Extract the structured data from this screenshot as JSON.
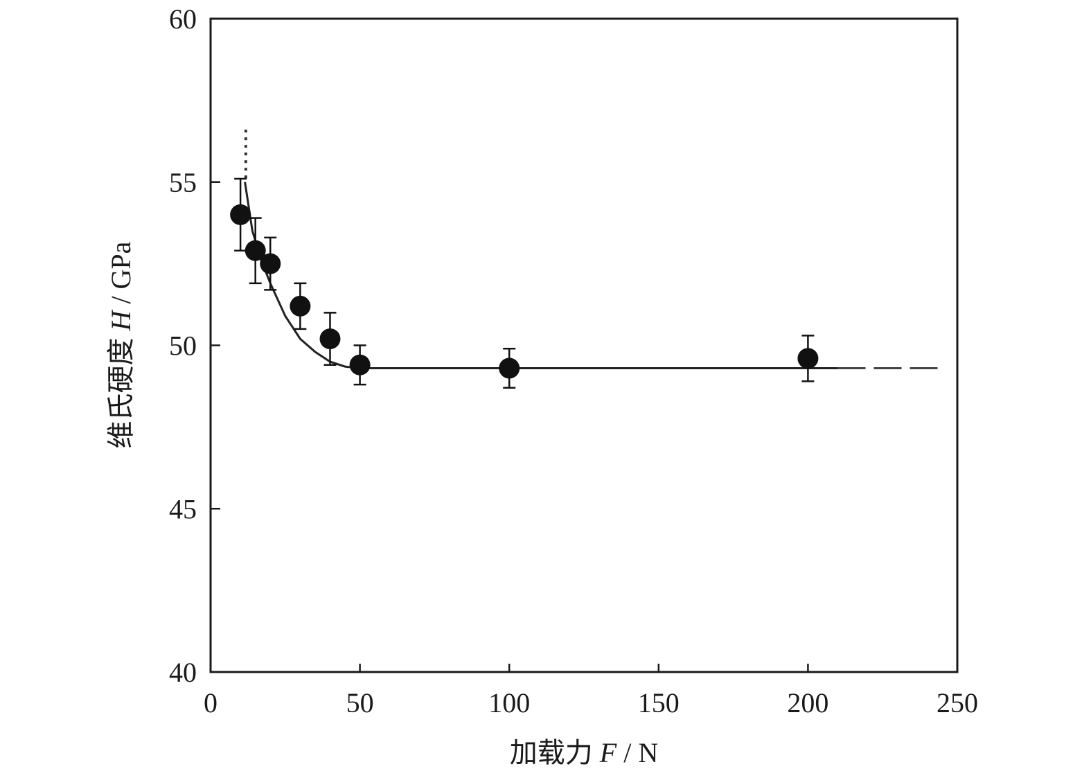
{
  "chart_data": {
    "type": "scatter",
    "title": "",
    "xlabel": {
      "prefix": "加载力 ",
      "symbol": "F",
      "unit": " / N"
    },
    "ylabel": {
      "prefix": "维氏硬度 ",
      "symbol": "H",
      "unit": " / GPa"
    },
    "xlim": [
      0,
      250
    ],
    "ylim": [
      40,
      60
    ],
    "xticks": [
      0,
      50,
      100,
      150,
      200,
      250
    ],
    "yticks": [
      40,
      45,
      50,
      55,
      60
    ],
    "grid": false,
    "legend": "none",
    "series": [
      {
        "style": "filled-circle-with-error-bars",
        "color": "#111111",
        "points": [
          {
            "x": 10,
            "y": 54.0,
            "err": 1.1
          },
          {
            "x": 15,
            "y": 52.9,
            "err": 1.0
          },
          {
            "x": 20,
            "y": 52.5,
            "err": 0.8
          },
          {
            "x": 30,
            "y": 51.2,
            "err": 0.7
          },
          {
            "x": 40,
            "y": 50.2,
            "err": 0.8
          },
          {
            "x": 50,
            "y": 49.4,
            "err": 0.6
          },
          {
            "x": 100,
            "y": 49.3,
            "err": 0.6
          },
          {
            "x": 200,
            "y": 49.6,
            "err": 0.7
          }
        ]
      }
    ],
    "fit_curve": {
      "color": "#222222",
      "points": [
        [
          11.5,
          55.0
        ],
        [
          14,
          53.5
        ],
        [
          17,
          52.6
        ],
        [
          20,
          51.9
        ],
        [
          25,
          50.9
        ],
        [
          30,
          50.2
        ],
        [
          35,
          49.8
        ],
        [
          40,
          49.5
        ],
        [
          45,
          49.35
        ],
        [
          50,
          49.3
        ],
        [
          100,
          49.3
        ],
        [
          150,
          49.3
        ],
        [
          210,
          49.3
        ]
      ]
    },
    "fit_curve_dashed": {
      "points": [
        [
          210,
          49.3
        ],
        [
          246,
          49.3
        ]
      ]
    },
    "dotted_asymptote": {
      "points": [
        [
          11.8,
          56.6
        ],
        [
          11.8,
          55.0
        ]
      ]
    }
  }
}
